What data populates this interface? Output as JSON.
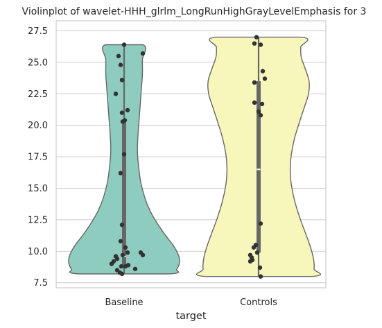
{
  "chart_data": {
    "type": "violin",
    "title": "Violinplot of wavelet-HHH_glrlm_LongRunHighGrayLevelEmphasis for 3",
    "xlabel": "target",
    "ylabel": "",
    "ylim": [
      7.1,
      28.3
    ],
    "yticks": [
      7.5,
      10.0,
      12.5,
      15.0,
      17.5,
      20.0,
      22.5,
      25.0,
      27.5
    ],
    "ytick_labels": [
      "7.5",
      "10.0",
      "12.5",
      "15.0",
      "17.5",
      "20.0",
      "22.5",
      "25.0",
      "27.5"
    ],
    "grid": true,
    "categories": [
      "Baseline",
      "Controls"
    ],
    "groups": [
      {
        "category": "Baseline",
        "color": "#8dccbf",
        "range": [
          8.2,
          26.4
        ],
        "box": {
          "q1": 8.9,
          "median": 9.6,
          "q3": 20.4
        },
        "profile": [
          [
            8.2,
            0.8
          ],
          [
            8.6,
            0.95
          ],
          [
            9.2,
            1.0
          ],
          [
            9.8,
            0.97
          ],
          [
            10.5,
            0.88
          ],
          [
            11.3,
            0.74
          ],
          [
            12.2,
            0.6
          ],
          [
            13.2,
            0.47
          ],
          [
            14.3,
            0.37
          ],
          [
            15.5,
            0.3
          ],
          [
            16.8,
            0.26
          ],
          [
            18.0,
            0.24
          ],
          [
            19.2,
            0.25
          ],
          [
            20.4,
            0.27
          ],
          [
            21.6,
            0.29
          ],
          [
            22.8,
            0.31
          ],
          [
            24.0,
            0.33
          ],
          [
            25.2,
            0.33
          ],
          [
            26.4,
            0.34
          ]
        ],
        "points": [
          [
            0.0,
            26.4
          ],
          [
            0.27,
            25.7
          ],
          [
            -0.08,
            25.5
          ],
          [
            -0.05,
            24.8
          ],
          [
            -0.03,
            23.6
          ],
          [
            -0.12,
            22.5
          ],
          [
            0.05,
            21.2
          ],
          [
            -0.03,
            21.0
          ],
          [
            0.01,
            20.4
          ],
          [
            -0.02,
            20.3
          ],
          [
            0.0,
            17.7
          ],
          [
            -0.05,
            16.2
          ],
          [
            -0.03,
            12.1
          ],
          [
            -0.05,
            10.8
          ],
          [
            0.02,
            10.3
          ],
          [
            0.05,
            9.9
          ],
          [
            0.24,
            9.9
          ],
          [
            0.27,
            9.7
          ],
          [
            -0.02,
            9.7
          ],
          [
            -0.12,
            9.6
          ],
          [
            -0.1,
            9.4
          ],
          [
            -0.15,
            9.2
          ],
          [
            -0.18,
            9.0
          ],
          [
            0.06,
            8.9
          ],
          [
            0.02,
            8.8
          ],
          [
            -0.04,
            8.8
          ],
          [
            0.16,
            8.6
          ],
          [
            -0.1,
            8.5
          ],
          [
            -0.06,
            8.3
          ],
          [
            -0.03,
            8.2
          ]
        ]
      },
      {
        "category": "Controls",
        "color": "#f8f7bb",
        "range": [
          8.0,
          27.0
        ],
        "box": {
          "q1": 9.9,
          "median": 16.5,
          "q3": 23.5
        },
        "profile": [
          [
            8.0,
            0.95
          ],
          [
            8.6,
            1.0
          ],
          [
            9.4,
            0.99
          ],
          [
            10.4,
            0.93
          ],
          [
            11.5,
            0.84
          ],
          [
            12.7,
            0.74
          ],
          [
            14.0,
            0.65
          ],
          [
            15.3,
            0.59
          ],
          [
            16.5,
            0.57
          ],
          [
            17.7,
            0.59
          ],
          [
            19.0,
            0.65
          ],
          [
            20.3,
            0.74
          ],
          [
            21.5,
            0.83
          ],
          [
            22.5,
            0.9
          ],
          [
            23.5,
            0.91
          ],
          [
            24.5,
            0.84
          ],
          [
            25.4,
            0.77
          ],
          [
            26.2,
            0.76
          ],
          [
            27.0,
            0.77
          ]
        ],
        "points": [
          [
            -0.03,
            27.0
          ],
          [
            -0.06,
            26.5
          ],
          [
            0.03,
            26.4
          ],
          [
            0.06,
            24.3
          ],
          [
            0.09,
            23.7
          ],
          [
            -0.06,
            23.4
          ],
          [
            0.05,
            21.7
          ],
          [
            -0.06,
            21.8
          ],
          [
            0.0,
            21.1
          ],
          [
            0.03,
            20.8
          ],
          [
            0.03,
            12.2
          ],
          [
            -0.04,
            10.5
          ],
          [
            -0.07,
            10.3
          ],
          [
            -0.02,
            9.9
          ],
          [
            -0.12,
            9.7
          ],
          [
            -0.1,
            9.5
          ],
          [
            -0.09,
            9.3
          ],
          [
            -0.12,
            9.2
          ],
          [
            0.02,
            8.7
          ],
          [
            0.03,
            8.0
          ]
        ]
      }
    ]
  }
}
